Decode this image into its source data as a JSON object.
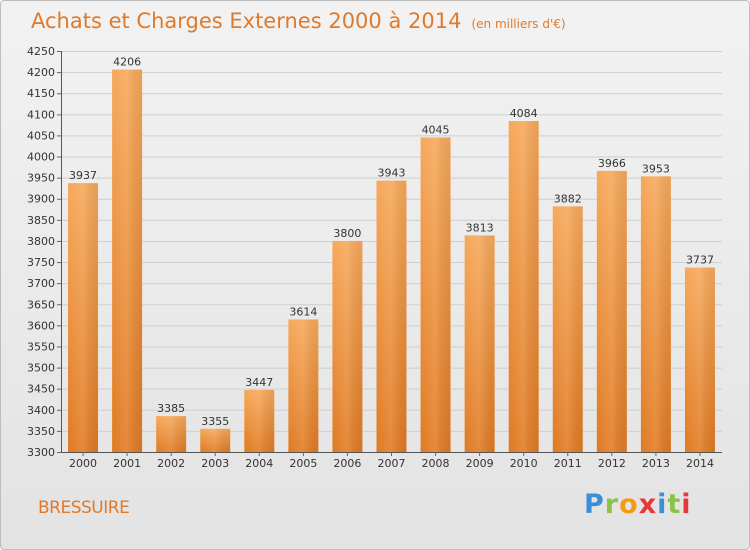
{
  "header": {
    "title": "Achats et Charges Externes 2000 à 2014",
    "subtitle": "(en milliers d'€)"
  },
  "footer": {
    "city": "BRESSUIRE",
    "brand": "Proxiti"
  },
  "colors": {
    "bar_top": "#f6a85a",
    "bar_bottom": "#e07a22",
    "accent": "#e07a2a"
  },
  "chart_data": {
    "type": "bar",
    "title": "Achats et Charges Externes 2000 à 2014",
    "subtitle": "(en milliers d'€)",
    "xlabel": "",
    "ylabel": "",
    "categories": [
      "2000",
      "2001",
      "2002",
      "2003",
      "2004",
      "2005",
      "2006",
      "2007",
      "2008",
      "2009",
      "2010",
      "2011",
      "2012",
      "2013",
      "2014"
    ],
    "values": [
      3937,
      4206,
      3385,
      3355,
      3447,
      3614,
      3800,
      3943,
      4045,
      3813,
      4084,
      3882,
      3966,
      3953,
      3737
    ],
    "ylim": [
      3300,
      4250
    ],
    "yticks": [
      3300,
      3350,
      3400,
      3450,
      3500,
      3550,
      3600,
      3650,
      3700,
      3750,
      3800,
      3850,
      3900,
      3950,
      4000,
      4050,
      4100,
      4150,
      4200,
      4250
    ],
    "grid": true,
    "legend": "none"
  }
}
